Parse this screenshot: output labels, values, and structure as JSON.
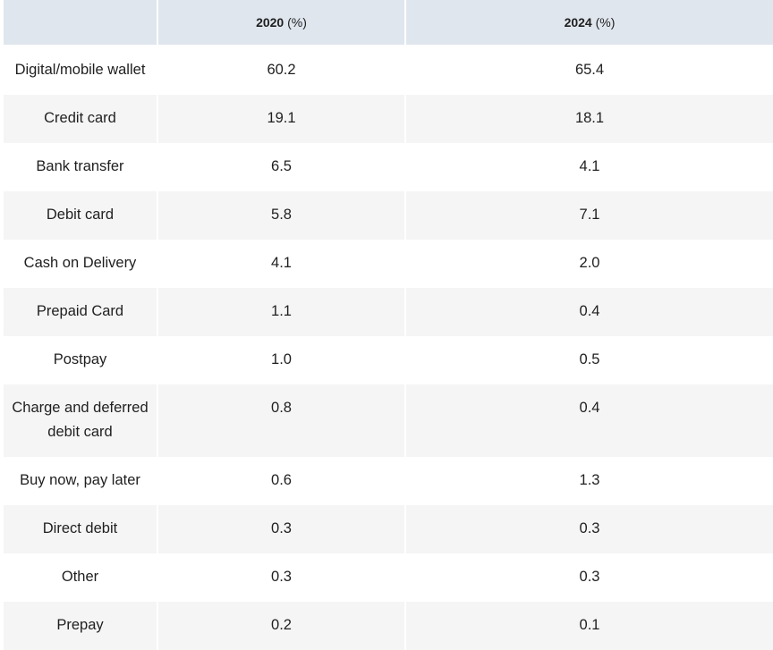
{
  "table": {
    "headers": [
      {
        "label": ""
      },
      {
        "year": "2020",
        "unit": " (%)"
      },
      {
        "year": "2024",
        "unit": " (%)"
      }
    ],
    "rows": [
      {
        "method": "Digital/mobile wallet",
        "y2020": "60.2",
        "y2024": "65.4"
      },
      {
        "method": "Credit card",
        "y2020": "19.1",
        "y2024": "18.1"
      },
      {
        "method": "Bank transfer",
        "y2020": "6.5",
        "y2024": "4.1"
      },
      {
        "method": "Debit card",
        "y2020": "5.8",
        "y2024": "7.1"
      },
      {
        "method": "Cash on Delivery",
        "y2020": "4.1",
        "y2024": "2.0"
      },
      {
        "method": "Prepaid Card",
        "y2020": "1.1",
        "y2024": "0.4"
      },
      {
        "method": "Postpay",
        "y2020": "1.0",
        "y2024": "0.5"
      },
      {
        "method": "Charge and deferred debit card",
        "y2020": "0.8",
        "y2024": "0.4"
      },
      {
        "method": "Buy now, pay later",
        "y2020": "0.6",
        "y2024": "1.3"
      },
      {
        "method": "Direct debit",
        "y2020": "0.3",
        "y2024": "0.3"
      },
      {
        "method": "Other",
        "y2020": "0.3",
        "y2024": "0.3"
      },
      {
        "method": "Prepay",
        "y2020": "0.2",
        "y2024": "0.1"
      }
    ]
  },
  "colors": {
    "header_bg": "#dfe6ee",
    "stripe_bg": "#f5f5f5",
    "row_bg": "#ffffff"
  }
}
